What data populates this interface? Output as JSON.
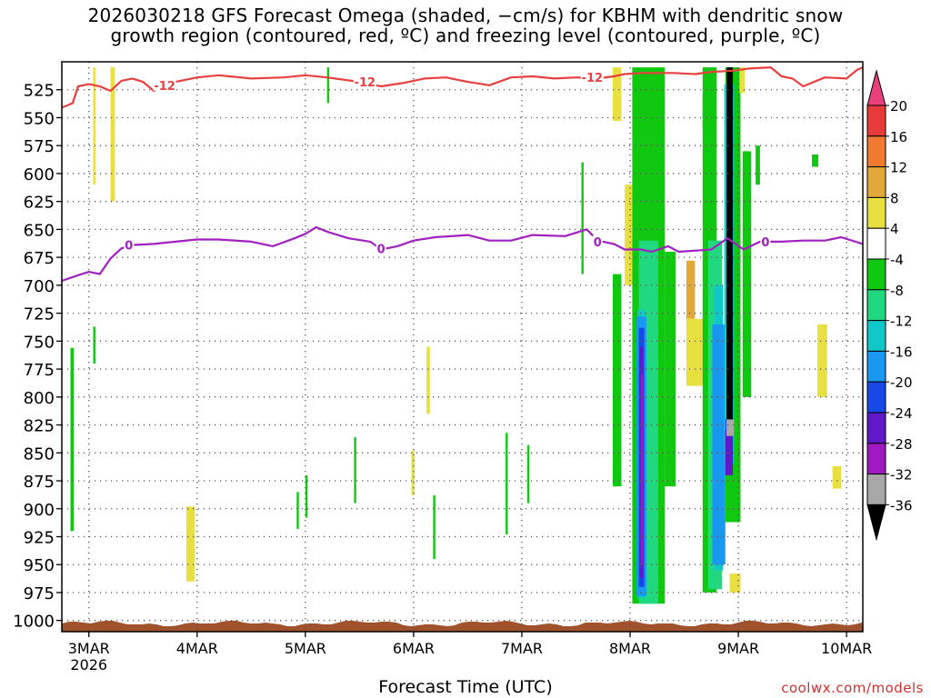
{
  "title_line1": "2026030218 GFS Forecast Omega (shaded, −cm/s) for KBHM with dendritic snow",
  "title_line2": "growth region (contoured, red, ºC) and freezing level (contoured, purple, ºC)",
  "credit": "coolwx.com/models",
  "chart_data": {
    "type": "heatmap",
    "xlabel": "Forecast Time (UTC)",
    "x_ticks": [
      "3MAR",
      "4MAR",
      "5MAR",
      "6MAR",
      "7MAR",
      "8MAR",
      "9MAR",
      "10MAR"
    ],
    "x_year_label": "2026",
    "x_range_days": [
      2.75,
      10.15
    ],
    "y_ticks": [
      525,
      550,
      575,
      600,
      625,
      650,
      675,
      700,
      725,
      750,
      775,
      800,
      825,
      850,
      875,
      900,
      925,
      950,
      975,
      1000
    ],
    "y_range_hpa": [
      500,
      1010
    ],
    "grid": true,
    "colorbar": {
      "labels": [
        "20",
        "16",
        "12",
        "8",
        "4",
        "-4",
        "-8",
        "-12",
        "-16",
        "-20",
        "-24",
        "-28",
        "-32",
        "-36"
      ],
      "bins": [
        {
          "color": "#e8407a"
        },
        {
          "color": "#e83a3a"
        },
        {
          "color": "#f07a30"
        },
        {
          "color": "#e2a838"
        },
        {
          "color": "#e8e040"
        },
        {
          "color": "#ffffff"
        },
        {
          "color": "#10c810"
        },
        {
          "color": "#20d880"
        },
        {
          "color": "#10c8c8"
        },
        {
          "color": "#1898f0"
        },
        {
          "color": "#1848e8"
        },
        {
          "color": "#6018c8"
        },
        {
          "color": "#a018c0"
        },
        {
          "color": "#a8a8a8"
        },
        {
          "color": "#000000"
        }
      ]
    },
    "contour_labels": {
      "dgz": "-12",
      "freezing": "0"
    },
    "series": [
      {
        "name": "-12",
        "color": "#e84040",
        "points": [
          [
            2.75,
            541
          ],
          [
            2.85,
            537
          ],
          [
            2.9,
            522
          ],
          [
            3.0,
            520
          ],
          [
            3.1,
            522
          ],
          [
            3.2,
            526
          ],
          [
            3.3,
            517
          ],
          [
            3.4,
            515
          ],
          [
            3.5,
            518
          ],
          [
            3.6,
            526
          ],
          [
            3.7,
            522
          ],
          [
            3.8,
            518
          ],
          [
            4.0,
            514
          ],
          [
            4.2,
            512
          ],
          [
            4.5,
            515
          ],
          [
            4.8,
            514
          ],
          [
            5.0,
            512
          ],
          [
            5.2,
            514
          ],
          [
            5.5,
            518
          ],
          [
            5.7,
            522
          ],
          [
            5.9,
            519
          ],
          [
            6.1,
            515
          ],
          [
            6.3,
            514
          ],
          [
            6.5,
            518
          ],
          [
            6.7,
            521
          ],
          [
            6.9,
            514
          ],
          [
            7.1,
            513
          ],
          [
            7.3,
            515
          ],
          [
            7.5,
            514
          ],
          [
            7.7,
            515
          ],
          [
            7.85,
            513
          ],
          [
            7.95,
            511
          ],
          [
            8.1,
            510
          ],
          [
            8.4,
            510
          ],
          [
            8.6,
            511
          ],
          [
            8.75,
            509
          ],
          [
            8.95,
            508
          ],
          [
            9.1,
            506
          ],
          [
            9.3,
            505
          ],
          [
            9.4,
            513
          ],
          [
            9.5,
            515
          ],
          [
            9.6,
            522
          ],
          [
            9.8,
            514
          ],
          [
            10.0,
            515
          ],
          [
            10.1,
            507
          ],
          [
            10.15,
            505
          ]
        ]
      },
      {
        "name": "0",
        "color": "#a020c0",
        "points": [
          [
            2.75,
            696
          ],
          [
            2.9,
            691
          ],
          [
            3.0,
            688
          ],
          [
            3.1,
            690
          ],
          [
            3.2,
            676
          ],
          [
            3.3,
            667
          ],
          [
            3.4,
            664
          ],
          [
            3.6,
            663
          ],
          [
            3.8,
            661
          ],
          [
            4.0,
            659
          ],
          [
            4.2,
            659
          ],
          [
            4.5,
            661
          ],
          [
            4.7,
            665
          ],
          [
            4.9,
            658
          ],
          [
            5.0,
            654
          ],
          [
            5.1,
            648
          ],
          [
            5.2,
            652
          ],
          [
            5.4,
            658
          ],
          [
            5.6,
            661
          ],
          [
            5.7,
            668
          ],
          [
            5.85,
            665
          ],
          [
            6.0,
            660
          ],
          [
            6.2,
            657
          ],
          [
            6.5,
            655
          ],
          [
            6.7,
            660
          ],
          [
            6.9,
            660
          ],
          [
            7.1,
            655
          ],
          [
            7.4,
            656
          ],
          [
            7.6,
            650
          ],
          [
            7.7,
            660
          ],
          [
            7.85,
            663
          ],
          [
            7.95,
            668
          ],
          [
            8.1,
            668
          ],
          [
            8.2,
            670
          ],
          [
            8.35,
            665
          ],
          [
            8.45,
            670
          ],
          [
            8.6,
            669
          ],
          [
            8.75,
            668
          ],
          [
            8.9,
            658
          ],
          [
            9.05,
            668
          ],
          [
            9.2,
            661
          ],
          [
            9.4,
            661
          ],
          [
            9.6,
            660
          ],
          [
            9.8,
            660
          ],
          [
            9.95,
            657
          ],
          [
            10.15,
            663
          ]
        ]
      }
    ],
    "shaded_regions": [
      {
        "bin": 4,
        "x": [
          3.04,
          3.06
        ],
        "p": [
          505,
          610
        ]
      },
      {
        "bin": 4,
        "x": [
          3.2,
          3.24
        ],
        "p": [
          505,
          625
        ]
      },
      {
        "bin": 6,
        "x": [
          2.83,
          2.86
        ],
        "p": [
          756,
          920
        ]
      },
      {
        "bin": 6,
        "x": [
          3.04,
          3.06
        ],
        "p": [
          737,
          770
        ]
      },
      {
        "bin": 4,
        "x": [
          3.9,
          3.98
        ],
        "p": [
          898,
          965
        ]
      },
      {
        "bin": 6,
        "x": [
          4.92,
          4.94
        ],
        "p": [
          885,
          918
        ]
      },
      {
        "bin": 6,
        "x": [
          5.0,
          5.02
        ],
        "p": [
          870,
          908
        ]
      },
      {
        "bin": 6,
        "x": [
          5.2,
          5.22
        ],
        "p": [
          505,
          537
        ]
      },
      {
        "bin": 6,
        "x": [
          5.45,
          5.47
        ],
        "p": [
          836,
          895
        ]
      },
      {
        "bin": 4,
        "x": [
          5.98,
          6.01
        ],
        "p": [
          848,
          888
        ]
      },
      {
        "bin": 4,
        "x": [
          6.12,
          6.15
        ],
        "p": [
          755,
          815
        ]
      },
      {
        "bin": 6,
        "x": [
          6.18,
          6.2
        ],
        "p": [
          888,
          945
        ]
      },
      {
        "bin": 6,
        "x": [
          6.85,
          6.87
        ],
        "p": [
          832,
          923
        ]
      },
      {
        "bin": 6,
        "x": [
          7.05,
          7.07
        ],
        "p": [
          843,
          895
        ]
      },
      {
        "bin": 6,
        "x": [
          7.55,
          7.57
        ],
        "p": [
          590,
          690
        ]
      },
      {
        "bin": 4,
        "x": [
          7.84,
          7.92
        ],
        "p": [
          505,
          553
        ]
      },
      {
        "bin": 6,
        "x": [
          7.84,
          7.92
        ],
        "p": [
          690,
          880
        ]
      },
      {
        "bin": 4,
        "x": [
          7.95,
          8.02
        ],
        "p": [
          610,
          700
        ]
      },
      {
        "bin": 6,
        "x": [
          8.02,
          8.32
        ],
        "p": [
          505,
          985
        ]
      },
      {
        "bin": 7,
        "x": [
          8.08,
          8.26
        ],
        "p": [
          660,
          985
        ]
      },
      {
        "bin": 8,
        "x": [
          8.07,
          8.14
        ],
        "p": [
          722,
          980
        ]
      },
      {
        "bin": 9,
        "x": [
          8.06,
          8.15
        ],
        "p": [
          728,
          978
        ]
      },
      {
        "bin": 10,
        "x": [
          8.08,
          8.13
        ],
        "p": [
          738,
          970
        ]
      },
      {
        "bin": 11,
        "x": [
          8.09,
          8.12
        ],
        "p": [
          755,
          962
        ]
      },
      {
        "bin": 12,
        "x": [
          8.1,
          8.11
        ],
        "p": [
          780,
          950
        ]
      },
      {
        "bin": 6,
        "x": [
          8.32,
          8.42
        ],
        "p": [
          670,
          880
        ]
      },
      {
        "bin": 3,
        "x": [
          8.52,
          8.6
        ],
        "p": [
          678,
          730
        ]
      },
      {
        "bin": 4,
        "x": [
          8.52,
          8.67
        ],
        "p": [
          730,
          790
        ]
      },
      {
        "bin": 6,
        "x": [
          8.67,
          8.75
        ],
        "p": [
          530,
          560
        ]
      },
      {
        "bin": 6,
        "x": [
          8.67,
          8.8
        ],
        "p": [
          505,
          975
        ]
      },
      {
        "bin": 7,
        "x": [
          8.72,
          8.85
        ],
        "p": [
          660,
          972
        ]
      },
      {
        "bin": 8,
        "x": [
          8.78,
          8.86
        ],
        "p": [
          700,
          955
        ]
      },
      {
        "bin": 9,
        "x": [
          8.76,
          8.88
        ],
        "p": [
          735,
          950
        ]
      },
      {
        "bin": 6,
        "x": [
          8.88,
          9.02
        ],
        "p": [
          505,
          912
        ]
      },
      {
        "bin": 8,
        "x": [
          8.87,
          8.96
        ],
        "p": [
          520,
          860
        ]
      },
      {
        "bin": 10,
        "x": [
          8.88,
          8.95
        ],
        "p": [
          820,
          860
        ]
      },
      {
        "bin": 11,
        "x": [
          8.88,
          8.95
        ],
        "p": [
          830,
          870
        ]
      },
      {
        "bin": 13,
        "x": [
          8.89,
          8.96
        ],
        "p": [
          820,
          835
        ]
      },
      {
        "bin": 14,
        "x": [
          8.89,
          8.95
        ],
        "p": [
          505,
          820
        ]
      },
      {
        "bin": 4,
        "x": [
          9.01,
          9.06
        ],
        "p": [
          505,
          528
        ]
      },
      {
        "bin": 6,
        "x": [
          9.04,
          9.12
        ],
        "p": [
          580,
          800
        ]
      },
      {
        "bin": 6,
        "x": [
          9.16,
          9.2
        ],
        "p": [
          575,
          610
        ]
      },
      {
        "bin": 4,
        "x": [
          8.92,
          9.02
        ],
        "p": [
          958,
          975
        ]
      },
      {
        "bin": 6,
        "x": [
          9.68,
          9.74
        ],
        "p": [
          583,
          594
        ]
      },
      {
        "bin": 4,
        "x": [
          9.73,
          9.82
        ],
        "p": [
          735,
          800
        ]
      },
      {
        "bin": 4,
        "x": [
          9.87,
          9.95
        ],
        "p": [
          862,
          882
        ]
      }
    ]
  }
}
